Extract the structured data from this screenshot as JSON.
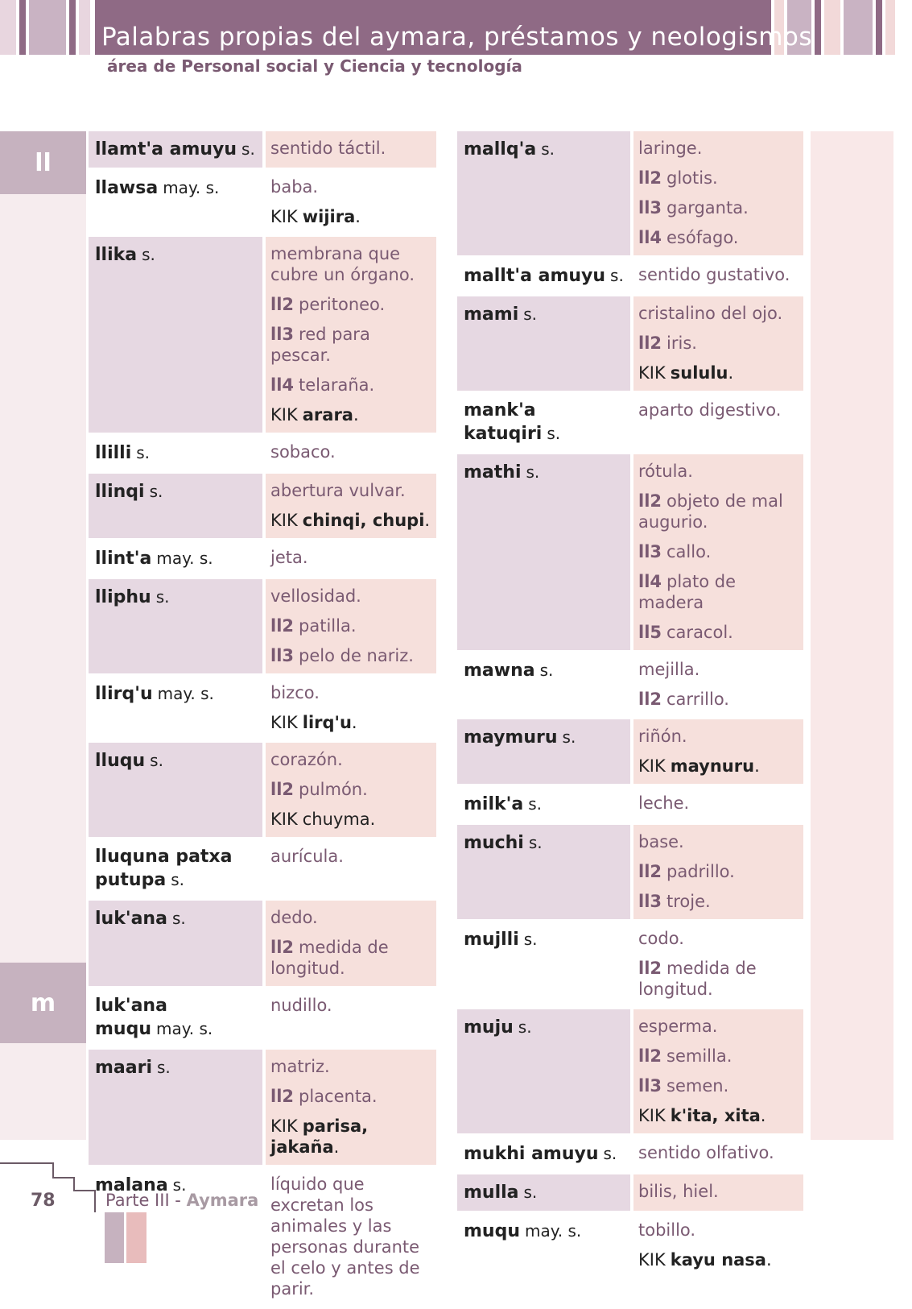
{
  "header": {
    "title": "Palabras propias del aymara, préstamos y neologismos",
    "subtitle": "área de Personal social y Ciencia y tecnología"
  },
  "side_tabs": [
    "ll",
    "m"
  ],
  "columns": [
    {
      "entries": [
        {
          "headword": "llamt'a amuyu",
          "pos": "s.",
          "senses": [
            {
              "text": "sentido táctil."
            }
          ]
        },
        {
          "headword": "llawsa",
          "pos": "may. s.",
          "senses": [
            {
              "text": "baba."
            },
            {
              "marker": "KIK",
              "bold": "wijira",
              "text": "."
            }
          ]
        },
        {
          "headword": "llika",
          "pos": "s.",
          "senses": [
            {
              "text": "membrana que cubre un órgano."
            },
            {
              "marker": "ll2",
              "text": "peritoneo."
            },
            {
              "marker": "ll3",
              "text": "red para pescar."
            },
            {
              "marker": "ll4",
              "text": "telaraña."
            },
            {
              "marker": "KIK",
              "bold": "arara",
              "text": "."
            }
          ]
        },
        {
          "headword": "llilli",
          "pos": "s.",
          "senses": [
            {
              "text": "sobaco."
            }
          ]
        },
        {
          "headword": "llinqi",
          "pos": "s.",
          "senses": [
            {
              "text": "abertura vulvar."
            },
            {
              "marker": "KIK",
              "bold": "chinqi, chupi",
              "text": "."
            }
          ]
        },
        {
          "headword": "llint'a",
          "pos": "may. s.",
          "senses": [
            {
              "text": "jeta."
            }
          ]
        },
        {
          "headword": "lliphu",
          "pos": "s.",
          "senses": [
            {
              "text": "vellosidad."
            },
            {
              "marker": "ll2",
              "text": "patilla."
            },
            {
              "marker": "ll3",
              "text": "pelo de nariz."
            }
          ]
        },
        {
          "headword": "llirq'u",
          "pos": "may. s.",
          "senses": [
            {
              "text": "bizco."
            },
            {
              "marker": "KIK",
              "bold": "lirq'u",
              "text": "."
            }
          ]
        },
        {
          "headword": "lluqu",
          "pos": "s.",
          "senses": [
            {
              "text": "corazón."
            },
            {
              "marker": "ll2",
              "text": "pulmón."
            },
            {
              "marker": "KIK",
              "text": "chuyma."
            }
          ]
        },
        {
          "headword": "lluquna patxa putupa",
          "pos": "s.",
          "senses": [
            {
              "text": "aurícula."
            }
          ]
        },
        {
          "headword": "luk'ana",
          "pos": "s.",
          "senses": [
            {
              "text": "dedo."
            },
            {
              "marker": "ll2",
              "text": "medida de longitud."
            }
          ]
        },
        {
          "headword": "luk'ana muqu",
          "pos": "may. s.",
          "senses": [
            {
              "text": "nudillo."
            }
          ]
        },
        {
          "headword": "maari",
          "pos": "s.",
          "senses": [
            {
              "text": "matriz."
            },
            {
              "marker": "ll2",
              "text": "placenta."
            },
            {
              "marker": "KIK",
              "bold": "parisa, jakaña",
              "text": "."
            }
          ]
        },
        {
          "headword": "malana",
          "pos": "s.",
          "senses": [
            {
              "text": "líquido que excretan los animales y las personas durante el celo y antes de parir."
            }
          ]
        }
      ]
    },
    {
      "entries": [
        {
          "headword": "mallq'a",
          "pos": "s.",
          "senses": [
            {
              "text": "laringe."
            },
            {
              "marker": "ll2",
              "text": "glotis."
            },
            {
              "marker": "ll3",
              "text": "garganta."
            },
            {
              "marker": "ll4",
              "text": "esófago."
            }
          ]
        },
        {
          "headword": "mallt'a amuyu",
          "pos": "s.",
          "senses": [
            {
              "text": "sentido gustativo."
            }
          ]
        },
        {
          "headword": "mami",
          "pos": "s.",
          "senses": [
            {
              "text": "cristalino del ojo."
            },
            {
              "marker": "ll2",
              "text": "iris."
            },
            {
              "marker": "KIK",
              "bold": "sululu",
              "text": "."
            }
          ]
        },
        {
          "headword": "mank'a katuqiri",
          "pos": "s.",
          "senses": [
            {
              "text": "aparto digestivo."
            }
          ]
        },
        {
          "headword": "mathi",
          "pos": "s.",
          "senses": [
            {
              "text": "rótula."
            },
            {
              "marker": "ll2",
              "text": "objeto de mal augurio."
            },
            {
              "marker": "ll3",
              "text": "callo."
            },
            {
              "marker": "ll4",
              "text": "plato de madera"
            },
            {
              "marker": "ll5",
              "text": "caracol."
            }
          ]
        },
        {
          "headword": "mawna",
          "pos": "s.",
          "senses": [
            {
              "text": "mejilla."
            },
            {
              "marker": "ll2",
              "text": "carrillo."
            }
          ]
        },
        {
          "headword": "maymuru",
          "pos": "s.",
          "senses": [
            {
              "text": "riñón."
            },
            {
              "marker": "KIK",
              "bold": "maynuru",
              "text": "."
            }
          ]
        },
        {
          "headword": "milk'a",
          "pos": "s.",
          "senses": [
            {
              "text": "leche."
            }
          ]
        },
        {
          "headword": "muchi",
          "pos": "s.",
          "senses": [
            {
              "text": "base."
            },
            {
              "marker": "ll2",
              "text": "padrillo."
            },
            {
              "marker": "ll3",
              "text": "troje."
            }
          ]
        },
        {
          "headword": "mujlli",
          "pos": "s.",
          "senses": [
            {
              "text": "codo."
            },
            {
              "marker": "ll2",
              "text": "medida de longitud."
            }
          ]
        },
        {
          "headword": "muju",
          "pos": "s.",
          "senses": [
            {
              "text": "esperma."
            },
            {
              "marker": "ll2",
              "text": "semilla."
            },
            {
              "marker": "ll3",
              "text": "semen."
            },
            {
              "marker": "KIK",
              "bold": "k'ita, xita",
              "text": "."
            }
          ]
        },
        {
          "headword": "mukhi amuyu",
          "pos": "s.",
          "senses": [
            {
              "text": "sentido olfativo."
            }
          ]
        },
        {
          "headword": "mulla",
          "pos": "s.",
          "senses": [
            {
              "text": "bilis, hiel."
            }
          ]
        },
        {
          "headword": "muqu",
          "pos": "may. s.",
          "senses": [
            {
              "text": "tobillo."
            },
            {
              "marker": "KIK",
              "bold": "kayu nasa",
              "text": "."
            }
          ]
        }
      ]
    }
  ],
  "footer": {
    "page_number": "78",
    "part": "Parte III - ",
    "language": "Aymara"
  }
}
